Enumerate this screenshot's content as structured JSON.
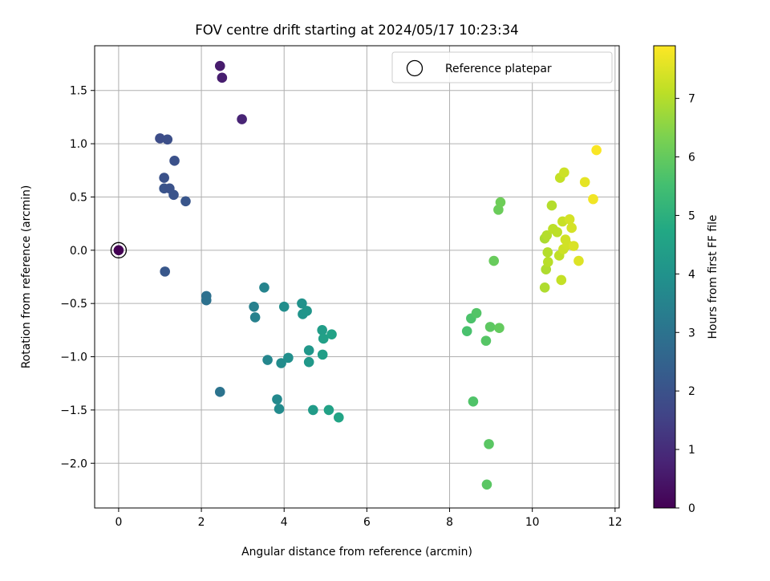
{
  "chart_data": {
    "type": "scatter",
    "title": "FOV centre drift starting at 2024/05/17 10:23:34",
    "xlabel": "Angular distance from reference (arcmin)",
    "ylabel": "Rotation from reference (arcmin)",
    "xlim": [
      -0.58,
      12.1
    ],
    "ylim": [
      -2.42,
      1.92
    ],
    "xticks": [
      0,
      2,
      4,
      6,
      8,
      10,
      12
    ],
    "xtick_labels": [
      "0",
      "2",
      "4",
      "6",
      "8",
      "10",
      "12"
    ],
    "yticks": [
      -2.0,
      -1.5,
      -1.0,
      -0.5,
      0.0,
      0.5,
      1.0,
      1.5
    ],
    "ytick_labels": [
      "−2.0",
      "−1.5",
      "−1.0",
      "−0.5",
      "0.0",
      "0.5",
      "1.0",
      "1.5"
    ],
    "grid": true,
    "legend": {
      "placement": "top-right",
      "entries": [
        "Reference platepar"
      ]
    },
    "reference_point": {
      "x": 0.0,
      "y": 0.0,
      "label": "Reference platepar"
    },
    "colorbar": {
      "label": "Hours from first FF file",
      "colormap": "viridis",
      "range": [
        0,
        7.9
      ],
      "ticks": [
        0,
        1,
        2,
        3,
        4,
        5,
        6,
        7
      ],
      "tick_labels": [
        "0",
        "1",
        "2",
        "3",
        "4",
        "5",
        "6",
        "7"
      ]
    },
    "points": [
      {
        "x": 0.0,
        "y": 0.0,
        "h": 0.0
      },
      {
        "x": 2.45,
        "y": 1.73,
        "h": 0.6
      },
      {
        "x": 2.5,
        "y": 1.62,
        "h": 0.65
      },
      {
        "x": 2.98,
        "y": 1.23,
        "h": 0.8
      },
      {
        "x": 1.0,
        "y": 1.05,
        "h": 1.85
      },
      {
        "x": 1.18,
        "y": 1.04,
        "h": 1.9
      },
      {
        "x": 1.35,
        "y": 0.84,
        "h": 1.95
      },
      {
        "x": 1.1,
        "y": 0.68,
        "h": 2.0
      },
      {
        "x": 1.1,
        "y": 0.58,
        "h": 2.05
      },
      {
        "x": 1.23,
        "y": 0.58,
        "h": 2.0
      },
      {
        "x": 1.33,
        "y": 0.52,
        "h": 2.05
      },
      {
        "x": 1.62,
        "y": 0.46,
        "h": 2.1
      },
      {
        "x": 1.12,
        "y": -0.2,
        "h": 2.15
      },
      {
        "x": 2.12,
        "y": -0.43,
        "h": 2.9
      },
      {
        "x": 2.12,
        "y": -0.47,
        "h": 2.95
      },
      {
        "x": 2.45,
        "y": -1.33,
        "h": 3.0
      },
      {
        "x": 3.27,
        "y": -0.53,
        "h": 3.4
      },
      {
        "x": 3.3,
        "y": -0.63,
        "h": 3.45
      },
      {
        "x": 3.52,
        "y": -0.35,
        "h": 3.55
      },
      {
        "x": 3.6,
        "y": -1.03,
        "h": 3.6
      },
      {
        "x": 3.83,
        "y": -1.4,
        "h": 3.7
      },
      {
        "x": 3.88,
        "y": -1.49,
        "h": 3.75
      },
      {
        "x": 3.93,
        "y": -1.06,
        "h": 3.8
      },
      {
        "x": 4.0,
        "y": -0.53,
        "h": 3.85
      },
      {
        "x": 4.1,
        "y": -1.01,
        "h": 3.9
      },
      {
        "x": 4.43,
        "y": -0.5,
        "h": 4.0
      },
      {
        "x": 4.45,
        "y": -0.6,
        "h": 4.05
      },
      {
        "x": 4.55,
        "y": -0.57,
        "h": 4.1
      },
      {
        "x": 4.6,
        "y": -0.94,
        "h": 4.15
      },
      {
        "x": 4.6,
        "y": -1.05,
        "h": 4.2
      },
      {
        "x": 4.7,
        "y": -1.5,
        "h": 4.3
      },
      {
        "x": 4.92,
        "y": -0.75,
        "h": 4.35
      },
      {
        "x": 4.93,
        "y": -0.98,
        "h": 4.4
      },
      {
        "x": 4.95,
        "y": -0.83,
        "h": 4.45
      },
      {
        "x": 5.08,
        "y": -1.5,
        "h": 4.5
      },
      {
        "x": 5.15,
        "y": -0.79,
        "h": 4.55
      },
      {
        "x": 5.32,
        "y": -1.57,
        "h": 4.6
      },
      {
        "x": 8.42,
        "y": -0.76,
        "h": 5.6
      },
      {
        "x": 8.52,
        "y": -0.64,
        "h": 5.65
      },
      {
        "x": 8.57,
        "y": -1.42,
        "h": 5.7
      },
      {
        "x": 8.65,
        "y": -0.59,
        "h": 5.75
      },
      {
        "x": 8.88,
        "y": -0.85,
        "h": 5.8
      },
      {
        "x": 8.95,
        "y": -1.82,
        "h": 5.85
      },
      {
        "x": 8.98,
        "y": -0.72,
        "h": 5.9
      },
      {
        "x": 8.9,
        "y": -2.2,
        "h": 5.85
      },
      {
        "x": 9.07,
        "y": -0.1,
        "h": 6.05
      },
      {
        "x": 9.2,
        "y": -0.73,
        "h": 6.0
      },
      {
        "x": 9.18,
        "y": 0.38,
        "h": 6.1
      },
      {
        "x": 9.23,
        "y": 0.45,
        "h": 6.15
      },
      {
        "x": 10.3,
        "y": 0.11,
        "h": 6.9
      },
      {
        "x": 10.3,
        "y": -0.35,
        "h": 6.95
      },
      {
        "x": 10.33,
        "y": -0.18,
        "h": 6.95
      },
      {
        "x": 10.35,
        "y": 0.14,
        "h": 7.0
      },
      {
        "x": 10.37,
        "y": -0.02,
        "h": 7.0
      },
      {
        "x": 10.38,
        "y": -0.11,
        "h": 7.05
      },
      {
        "x": 10.47,
        "y": 0.42,
        "h": 7.0
      },
      {
        "x": 10.5,
        "y": 0.2,
        "h": 7.1
      },
      {
        "x": 10.6,
        "y": 0.17,
        "h": 7.1
      },
      {
        "x": 10.65,
        "y": -0.05,
        "h": 7.15
      },
      {
        "x": 10.67,
        "y": 0.68,
        "h": 7.2
      },
      {
        "x": 10.7,
        "y": -0.28,
        "h": 7.2
      },
      {
        "x": 10.73,
        "y": 0.27,
        "h": 7.25
      },
      {
        "x": 10.75,
        "y": 0.01,
        "h": 7.3
      },
      {
        "x": 10.77,
        "y": 0.73,
        "h": 7.3
      },
      {
        "x": 10.8,
        "y": 0.1,
        "h": 7.35
      },
      {
        "x": 10.85,
        "y": 0.05,
        "h": 7.35
      },
      {
        "x": 10.9,
        "y": 0.29,
        "h": 7.4
      },
      {
        "x": 10.95,
        "y": 0.21,
        "h": 7.4
      },
      {
        "x": 11.0,
        "y": 0.04,
        "h": 7.45
      },
      {
        "x": 11.12,
        "y": -0.1,
        "h": 7.5
      },
      {
        "x": 11.27,
        "y": 0.64,
        "h": 7.6
      },
      {
        "x": 11.47,
        "y": 0.48,
        "h": 7.75
      },
      {
        "x": 11.55,
        "y": 0.94,
        "h": 7.85
      }
    ]
  }
}
